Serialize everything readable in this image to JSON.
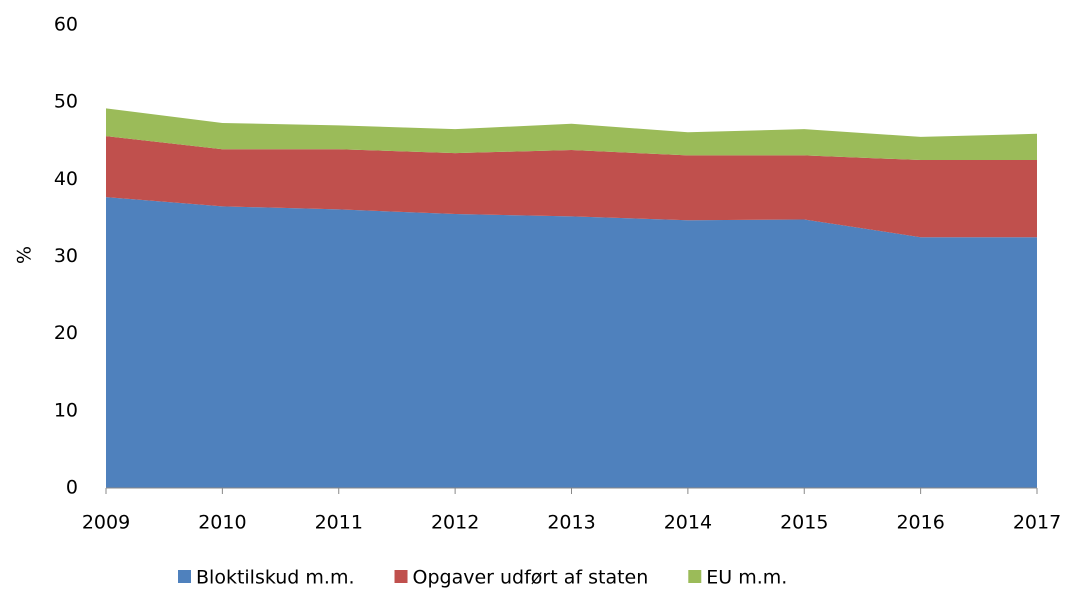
{
  "chart_data": {
    "type": "stacked_area",
    "y_label": "%",
    "x": [
      2009,
      2010,
      2011,
      2012,
      2013,
      2014,
      2015,
      2016,
      2017
    ],
    "xlim": [
      2009,
      2017
    ],
    "xticks": [
      2009,
      2010,
      2011,
      2012,
      2013,
      2014,
      2015,
      2016,
      2017
    ],
    "ylim": [
      0,
      60
    ],
    "yticks": [
      0,
      10,
      20,
      30,
      40,
      50,
      60
    ],
    "grid": false,
    "legend": "bottom",
    "series": [
      {
        "name": "Bloktilskud m.m.",
        "color": "#4f81bd",
        "values": [
          37.7,
          36.5,
          36.1,
          35.5,
          35.2,
          34.7,
          34.8,
          32.5,
          32.5
        ]
      },
      {
        "name": "Opgaver udført af staten",
        "color": "#c0504d",
        "values": [
          7.9,
          7.4,
          7.8,
          7.9,
          8.6,
          8.4,
          8.3,
          10.0,
          10.0
        ]
      },
      {
        "name": "EU m.m.",
        "color": "#9bbb59",
        "values": [
          3.6,
          3.4,
          3.1,
          3.1,
          3.4,
          3.0,
          3.4,
          3.0,
          3.4
        ]
      }
    ]
  }
}
